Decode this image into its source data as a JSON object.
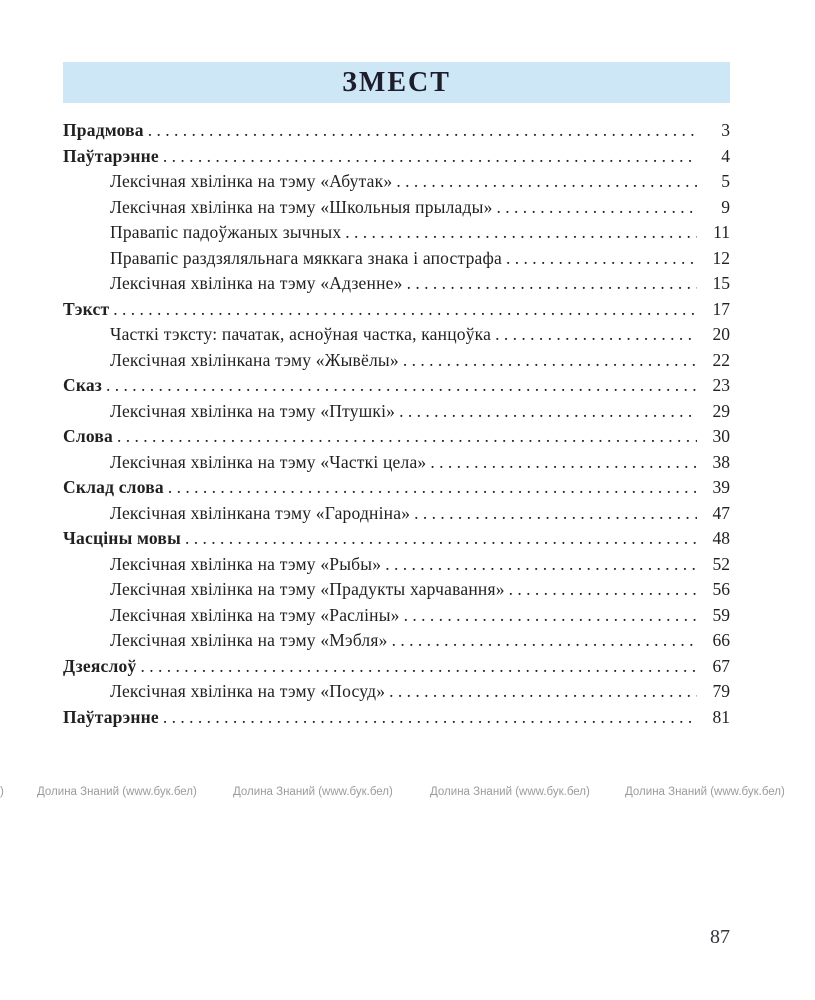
{
  "header": {
    "title": "ЗМЕСТ",
    "banner_color": "#cde7f7"
  },
  "toc": {
    "entries": [
      {
        "label": "Прадмова",
        "page": "3",
        "level": 0
      },
      {
        "label": "Паўтарэнне",
        "page": "4",
        "level": 0
      },
      {
        "label": "Лексічная хвілінка на тэму «Абутак»",
        "page": "5",
        "level": 1
      },
      {
        "label": "Лексічная хвілінка на тэму «Школьныя прылады»",
        "page": "9",
        "level": 1
      },
      {
        "label": "Правапіс падоўжаных зычных",
        "page": "11",
        "level": 1
      },
      {
        "label": "Правапіс раздзяляльнага мяккага знака і апострафа",
        "page": "12",
        "level": 1
      },
      {
        "label": "Лексічная хвілінка на тэму «Адзенне»",
        "page": "15",
        "level": 1
      },
      {
        "label": "Тэкст",
        "page": "17",
        "level": 0
      },
      {
        "label": "Часткі тэксту: пачатак, асноўная частка, канцоўка",
        "page": "20",
        "level": 1
      },
      {
        "label": "Лексічная хвілінкана тэму «Жывёлы»",
        "page": "22",
        "level": 1
      },
      {
        "label": "Сказ",
        "page": "23",
        "level": 0
      },
      {
        "label": "Лексічная хвілінка на тэму «Птушкі»",
        "page": "29",
        "level": 1
      },
      {
        "label": "Слова",
        "page": "30",
        "level": 0
      },
      {
        "label": "Лексічная хвілінка на тэму «Часткі цела»",
        "page": "38",
        "level": 1
      },
      {
        "label": "Склад слова",
        "page": "39",
        "level": 0
      },
      {
        "label": "Лексічная хвілінкана тэму «Гародніна»",
        "page": "47",
        "level": 1
      },
      {
        "label": "Часціны мовы",
        "page": "48",
        "level": 0
      },
      {
        "label": "Лексічная хвілінка на тэму «Рыбы»",
        "page": "52",
        "level": 1
      },
      {
        "label": "Лексічная хвілінка на тэму «Прадукты харчавання»",
        "page": "56",
        "level": 1
      },
      {
        "label": "Лексічная хвілінка на тэму «Расліны»",
        "page": "59",
        "level": 1
      },
      {
        "label": "Лексічная хвілінка на тэму «Мэбля»",
        "page": "66",
        "level": 1
      },
      {
        "label": "Дзеяслоў",
        "page": "67",
        "level": 0
      },
      {
        "label": "Лексічная хвілінка на тэму «Посуд»",
        "page": "79",
        "level": 1
      },
      {
        "label": "Паўтарэнне",
        "page": "81",
        "level": 0
      }
    ]
  },
  "watermark": {
    "partial_left": ")",
    "text": "Долина Знаний (www.бук.бел)"
  },
  "footer": {
    "page_number": "87"
  }
}
